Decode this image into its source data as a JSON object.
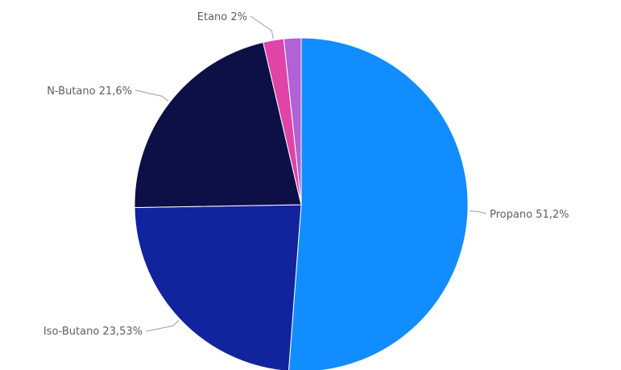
{
  "chart_data": {
    "type": "pie",
    "title": "",
    "legend": "none",
    "slices": [
      {
        "label": "Propano",
        "value": 51.2,
        "display": "Propano 51,2%",
        "color": "#118dff"
      },
      {
        "label": "Iso-Butano",
        "value": 23.53,
        "display": "Iso-Butano 23,53%",
        "color": "#12239e"
      },
      {
        "label": "N-Butano",
        "value": 21.6,
        "display": "N-Butano 21,6%",
        "color": "#0d0f47"
      },
      {
        "label": "Etano",
        "value": 2,
        "display": "Etano 2%",
        "color": "#e044a7"
      },
      {
        "label": "",
        "value": 1.67,
        "display": "",
        "color": "#b062d6"
      }
    ]
  }
}
